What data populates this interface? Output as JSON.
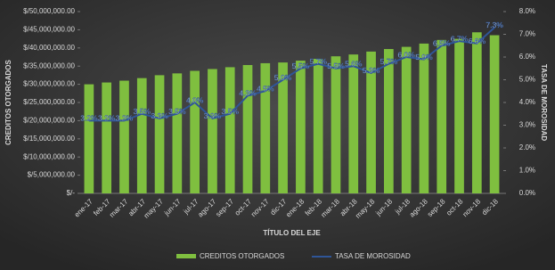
{
  "chart_data": {
    "type": "bar-line",
    "categories": [
      "ene-17",
      "feb-17",
      "mar-17",
      "abr-17",
      "may-17",
      "jun-17",
      "jul-17",
      "ago-17",
      "sep-17",
      "oct-17",
      "nov-17",
      "dic-17",
      "ene-18",
      "feb-18",
      "mar-18",
      "abr-18",
      "may-18",
      "jun-18",
      "jul-18",
      "ago-18",
      "sep-18",
      "oct-18",
      "nov-18",
      "dic-18"
    ],
    "series": [
      {
        "name": "CREDITOS OTORGADOS",
        "color": "#7fbf3f",
        "values": [
          30000000,
          30500000,
          31000000,
          31700000,
          32500000,
          33000000,
          33700000,
          34200000,
          34700000,
          35300000,
          35800000,
          36000000,
          36500000,
          37000000,
          37700000,
          38200000,
          39000000,
          39700000,
          40300000,
          41200000,
          42200000,
          42500000,
          44300000,
          43500000
        ]
      },
      {
        "name": "TASA DE MOROSIDAD",
        "color": "#2f5597",
        "axis": "y2",
        "values": [
          3.2,
          3.2,
          3.2,
          3.5,
          3.3,
          3.5,
          4.0,
          3.3,
          3.5,
          4.3,
          4.5,
          5.0,
          5.5,
          5.7,
          5.5,
          5.6,
          5.3,
          5.7,
          6.0,
          5.9,
          6.5,
          6.7,
          6.6,
          7.3
        ],
        "value_labels": [
          "3.2%",
          "3.2%",
          "3.2%",
          "3.5%",
          "3.3%",
          "3.5%",
          "4.0%",
          "3.3%",
          "3.5%",
          "4.3%",
          "4.5%",
          "5.0%",
          "5.5%",
          "5.7%",
          "5.5%",
          "5.6%",
          "5.3%",
          "5.7%",
          "6.0%",
          "5.9%",
          "6.5%",
          "6.7%",
          "6.6%",
          "7.3%"
        ]
      }
    ],
    "x_label": "TÍTULO DEL EJE",
    "y_label": "CREDITOS OTORGADOS",
    "y2_label": "TASA DE MOROSIDAD",
    "ylim": [
      0,
      50000000
    ],
    "yticks": [
      {
        "value": 0,
        "label": "$/-"
      },
      {
        "value": 5000000,
        "label": "$/5,000,000.00"
      },
      {
        "value": 10000000,
        "label": "$/10,000,000.00"
      },
      {
        "value": 15000000,
        "label": "$/15,000,000.00"
      },
      {
        "value": 20000000,
        "label": "$/20,000,000.00"
      },
      {
        "value": 25000000,
        "label": "$/25,000,000.00"
      },
      {
        "value": 30000000,
        "label": "$/30,000,000.00"
      },
      {
        "value": 35000000,
        "label": "$/35,000,000.00"
      },
      {
        "value": 40000000,
        "label": "$/40,000,000.00"
      },
      {
        "value": 45000000,
        "label": "$/45,000,000.00"
      },
      {
        "value": 50000000,
        "label": "$/50,000,000.00"
      }
    ],
    "y2lim": [
      0,
      8
    ],
    "y2ticks": [
      {
        "value": 0,
        "label": "0.0%"
      },
      {
        "value": 1,
        "label": "1.0%"
      },
      {
        "value": 2,
        "label": "2.0%"
      },
      {
        "value": 3,
        "label": "3.0%"
      },
      {
        "value": 4,
        "label": "4.0%"
      },
      {
        "value": 5,
        "label": "5.0%"
      },
      {
        "value": 6,
        "label": "6.0%"
      },
      {
        "value": 7,
        "label": "7.0%"
      },
      {
        "value": 8,
        "label": "8.0%"
      }
    ],
    "legend": "bottom"
  }
}
